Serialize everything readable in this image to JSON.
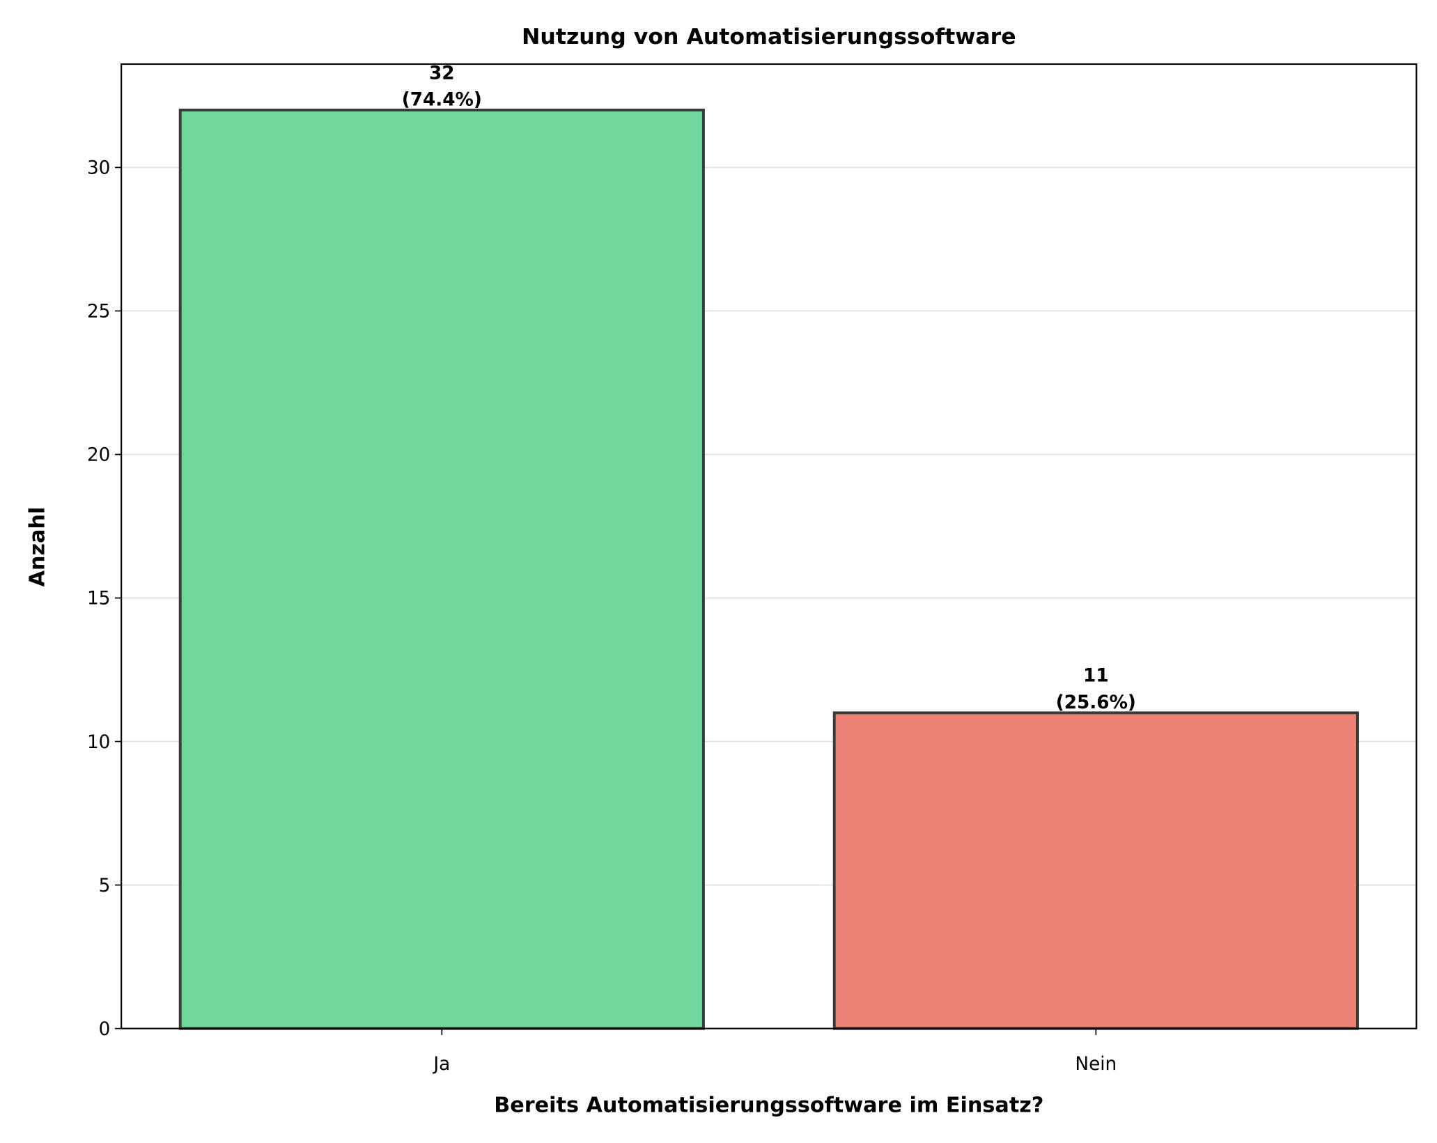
{
  "chart_data": {
    "type": "bar",
    "title": "Nutzung von Automatisierungssoftware",
    "xlabel": "Bereits Automatisierungssoftware im Einsatz?",
    "ylabel": "Anzahl",
    "categories": [
      "Ja",
      "Nein"
    ],
    "values": [
      32,
      11
    ],
    "data_labels": [
      [
        "32",
        "(74.4%)"
      ],
      [
        "11",
        "(25.6%)"
      ]
    ],
    "colors": [
      "#6fd99b",
      "#ec8176"
    ],
    "edge_color": "#3a3a3a",
    "ylim": [
      0,
      33.6
    ],
    "yticks": [
      0,
      5,
      10,
      15,
      20,
      25,
      30
    ],
    "grid": "y",
    "legend": "none"
  }
}
